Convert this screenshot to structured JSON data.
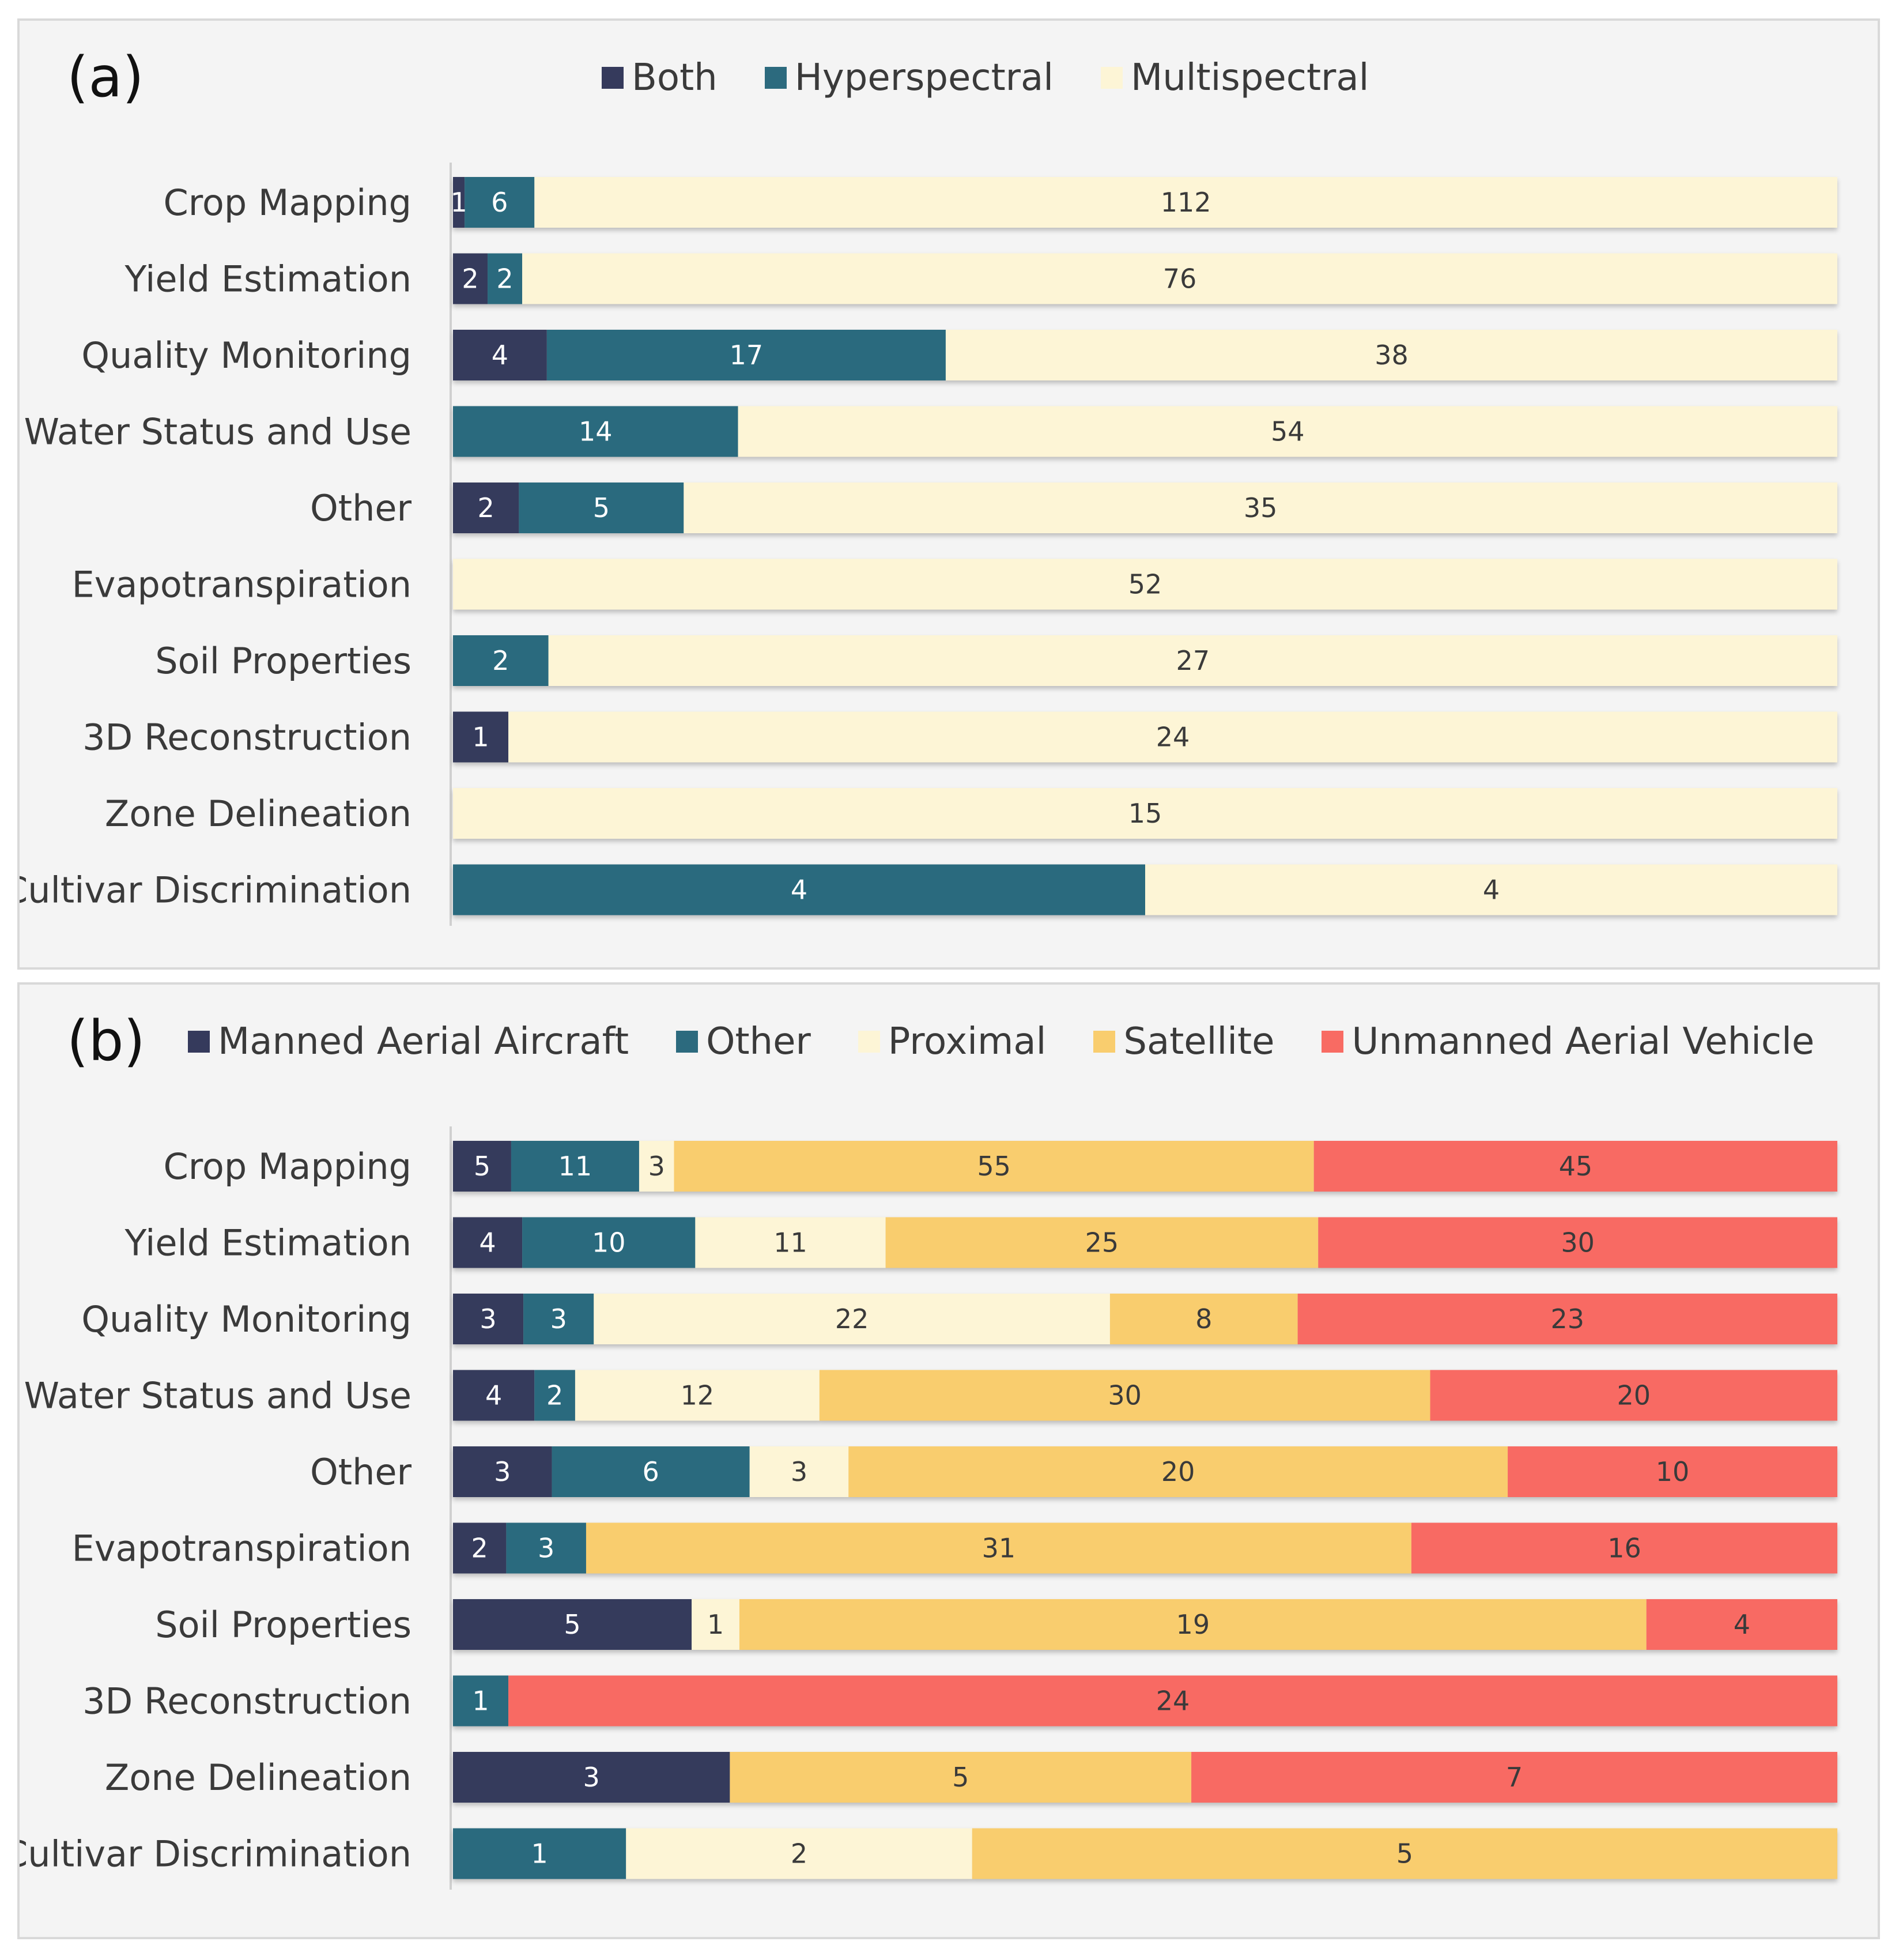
{
  "chart_data": [
    {
      "id": "a",
      "type": "bar",
      "orientation": "horizontal",
      "stacked": "percent",
      "panel_label": "(a)",
      "categories": [
        "Crop Mapping",
        "Yield Estimation",
        "Quality Monitoring",
        "Water Status and Use",
        "Other",
        "Evapotranspiration",
        "Soil Properties",
        "3D Reconstruction",
        "Zone Delineation",
        "Cultivar Discrimination"
      ],
      "series": [
        {
          "name": "Both",
          "color": "#353a5c",
          "text_color": "#ffffff",
          "values": [
            1,
            2,
            4,
            0,
            2,
            0,
            0,
            1,
            0,
            0
          ]
        },
        {
          "name": "Hyperspectral",
          "color": "#2c6a7e",
          "text_color": "#ffffff",
          "values": [
            6,
            2,
            17,
            14,
            5,
            0,
            2,
            0,
            0,
            4
          ]
        },
        {
          "name": "Multispectral",
          "color": "#fdf5d6",
          "text_color": "#3a3a3a",
          "values": [
            112,
            76,
            38,
            54,
            35,
            52,
            27,
            24,
            15,
            4
          ]
        }
      ],
      "legend_position": "top"
    },
    {
      "id": "b",
      "type": "bar",
      "orientation": "horizontal",
      "stacked": "percent",
      "panel_label": "(b)",
      "categories": [
        "Crop Mapping",
        "Yield Estimation",
        "Quality Monitoring",
        "Water Status and Use",
        "Other",
        "Evapotranspiration",
        "Soil Properties",
        "3D Reconstruction",
        "Zone Delineation",
        "Cultivar Discrimination"
      ],
      "series": [
        {
          "name": "Manned Aerial Aircraft",
          "color": "#353a5c",
          "text_color": "#ffffff",
          "values": [
            5,
            4,
            3,
            4,
            3,
            2,
            5,
            0,
            3,
            0
          ]
        },
        {
          "name": "Other",
          "color": "#2c6a7e",
          "text_color": "#ffffff",
          "values": [
            11,
            10,
            3,
            2,
            6,
            3,
            0,
            1,
            0,
            1
          ]
        },
        {
          "name": "Proximal",
          "color": "#fdf5d6",
          "text_color": "#3a3a3a",
          "values": [
            3,
            11,
            22,
            12,
            3,
            0,
            1,
            0,
            0,
            2
          ]
        },
        {
          "name": "Satellite",
          "color": "#f9cd6e",
          "text_color": "#3a3a3a",
          "values": [
            55,
            25,
            8,
            30,
            20,
            31,
            19,
            0,
            5,
            5
          ]
        },
        {
          "name": "Unmanned Aerial Vehicle",
          "color": "#f86b63",
          "text_color": "#3a3a3a",
          "values": [
            45,
            30,
            23,
            20,
            10,
            16,
            4,
            24,
            7,
            0
          ]
        }
      ],
      "legend_position": "top"
    }
  ]
}
